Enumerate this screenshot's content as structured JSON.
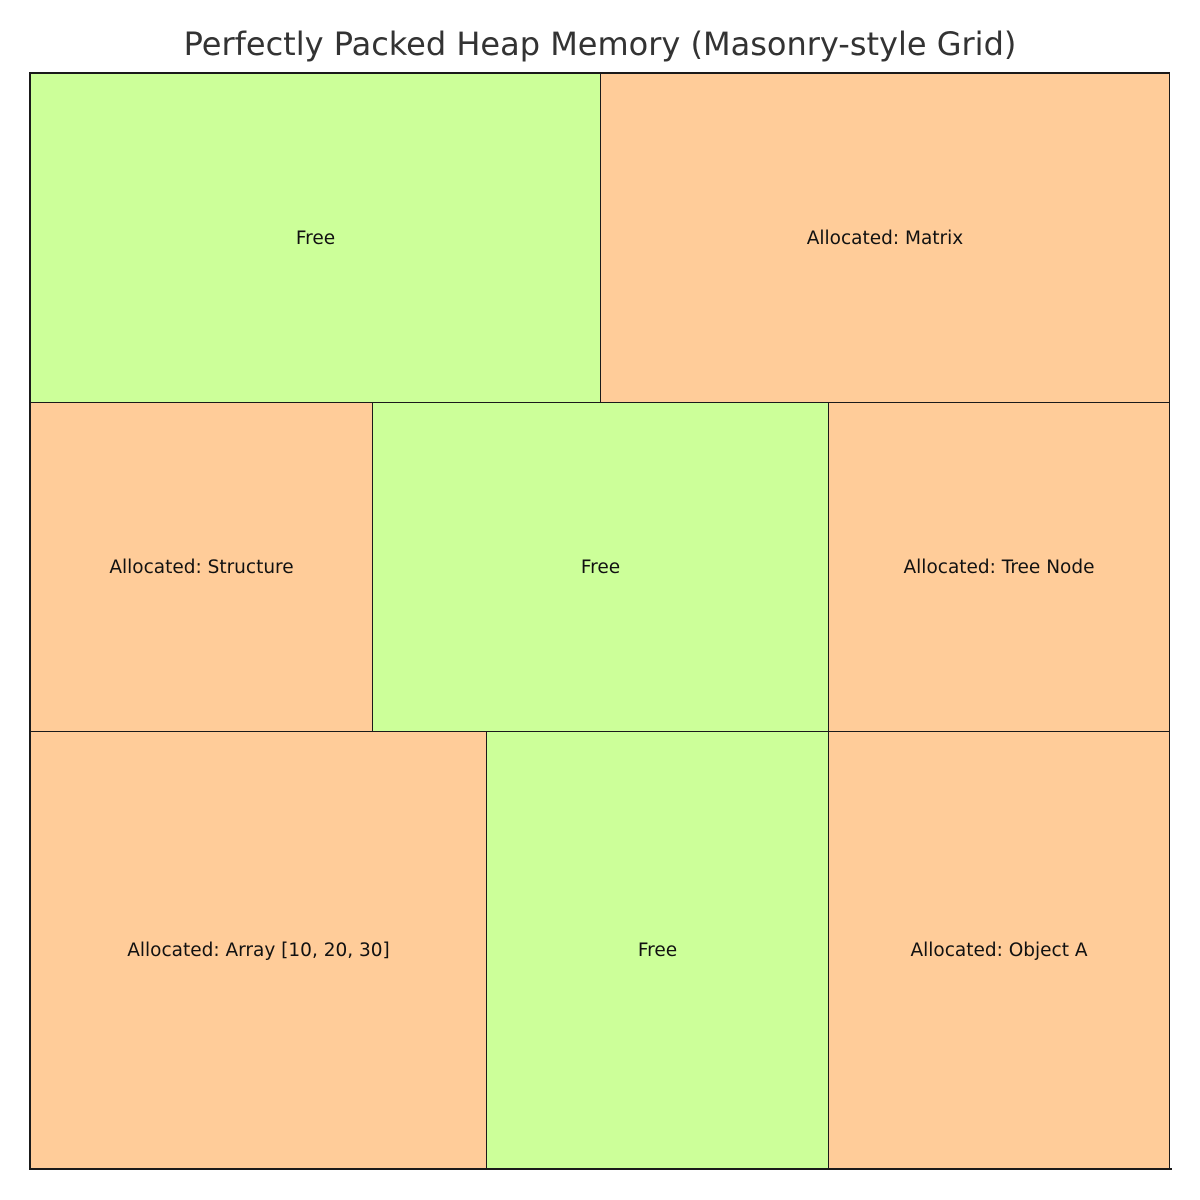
{
  "title": "Perfectly Packed Heap Memory (Masonry-style Grid)",
  "colors": {
    "free": "#ccff99",
    "allocated": "#ffcc99",
    "border": "#1a1a1a"
  },
  "blocks": [
    {
      "label": "Free",
      "status": "free"
    },
    {
      "label": "Allocated: Matrix",
      "status": "allocated"
    },
    {
      "label": "Allocated: Structure",
      "status": "allocated"
    },
    {
      "label": "Free",
      "status": "free"
    },
    {
      "label": "Allocated: Tree Node",
      "status": "allocated"
    },
    {
      "label": "Allocated: Array [10, 20, 30]",
      "status": "allocated"
    },
    {
      "label": "Free",
      "status": "free"
    },
    {
      "label": "Allocated: Object A",
      "status": "allocated"
    }
  ]
}
